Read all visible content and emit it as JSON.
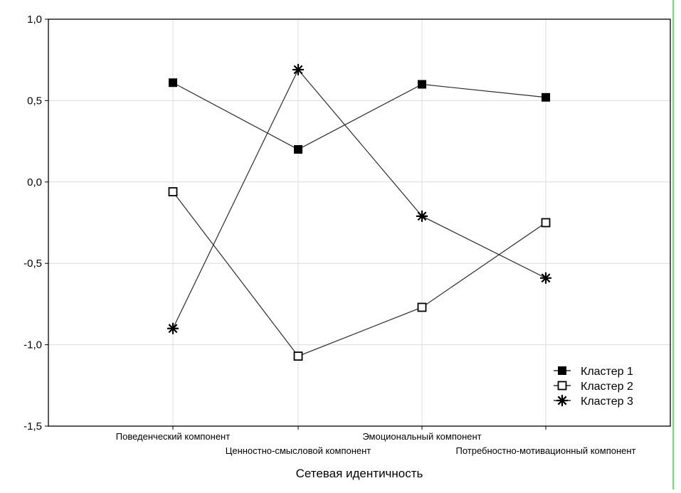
{
  "chart_data": {
    "type": "line",
    "xlabel": "Сетевая идентичность",
    "categories": [
      "Поведенческий компонент",
      "Ценностно-смысловой компонент",
      "Эмоциональный компонент",
      "Потребностно-мотивационный компонент"
    ],
    "ylim": [
      -1.5,
      1.0
    ],
    "yticks": [
      "1,0",
      "0,5",
      "0,0",
      "-0,5",
      "-1,0",
      "-1,5"
    ],
    "grid": true,
    "legend_position": "bottom-right",
    "series": [
      {
        "name": "Кластер  1",
        "marker": "filled-square",
        "values": [
          0.61,
          0.2,
          0.6,
          0.52
        ]
      },
      {
        "name": "Кластер  2",
        "marker": "open-square",
        "values": [
          -0.06,
          -1.07,
          -0.77,
          -0.25
        ]
      },
      {
        "name": "Кластер  3",
        "marker": "star",
        "values": [
          -0.9,
          0.69,
          -0.21,
          -0.59
        ]
      }
    ]
  }
}
